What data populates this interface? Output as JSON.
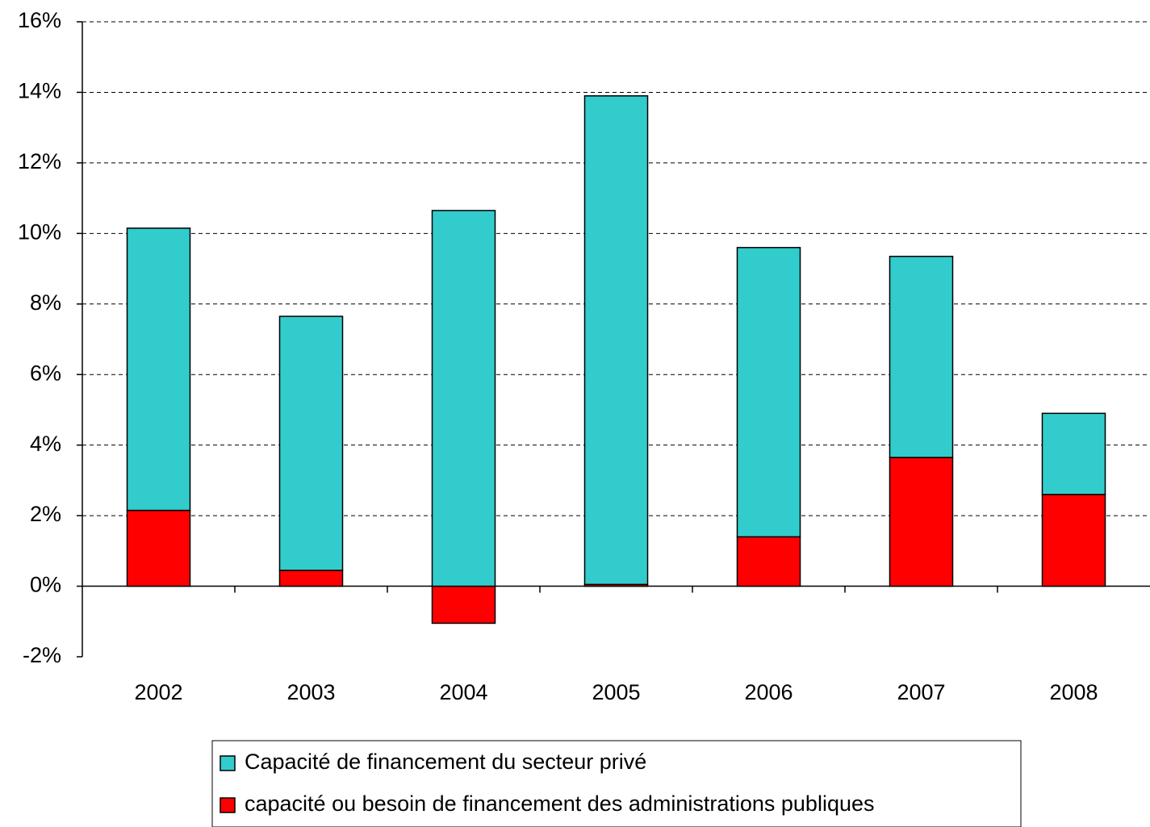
{
  "chart_data": {
    "type": "stacked_bar",
    "categories": [
      "2002",
      "2003",
      "2004",
      "2005",
      "2006",
      "2007",
      "2008"
    ],
    "series": [
      {
        "name": "Capacité de financement du secteur privé",
        "color": "#33cccc",
        "values": [
          8.0,
          7.2,
          10.65,
          13.85,
          8.2,
          5.7,
          2.3
        ]
      },
      {
        "name": "capacité ou besoin de financement des administrations publiques",
        "color": "#ff0000",
        "values": [
          2.15,
          0.45,
          -1.05,
          0.05,
          1.4,
          3.65,
          2.6
        ]
      }
    ],
    "ylim": [
      -2,
      16
    ],
    "yticks": [
      {
        "value": -2,
        "label": "-2%"
      },
      {
        "value": 0,
        "label": "0%"
      },
      {
        "value": 2,
        "label": "2%"
      },
      {
        "value": 4,
        "label": "4%"
      },
      {
        "value": 6,
        "label": "6%"
      },
      {
        "value": 8,
        "label": "8%"
      },
      {
        "value": 10,
        "label": "10%"
      },
      {
        "value": 12,
        "label": "12%"
      },
      {
        "value": 14,
        "label": "14%"
      },
      {
        "value": 16,
        "label": "16%"
      }
    ],
    "grid": true,
    "legend": "bottom"
  }
}
